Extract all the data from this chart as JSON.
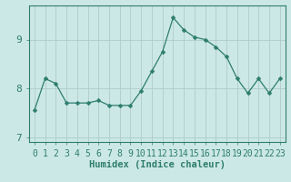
{
  "x": [
    0,
    1,
    2,
    3,
    4,
    5,
    6,
    7,
    8,
    9,
    10,
    11,
    12,
    13,
    14,
    15,
    16,
    17,
    18,
    19,
    20,
    21,
    22,
    23
  ],
  "y": [
    7.55,
    8.2,
    8.1,
    7.7,
    7.7,
    7.7,
    7.75,
    7.65,
    7.65,
    7.65,
    7.95,
    8.35,
    8.75,
    9.45,
    9.2,
    9.05,
    9.0,
    8.85,
    8.65,
    8.2,
    7.9,
    8.2,
    7.9,
    8.2
  ],
  "line_color": "#2e7d6e",
  "marker": "D",
  "marker_size": 2.5,
  "bg_color": "#cce8e6",
  "grid_color": "#b0ccca",
  "tick_color": "#2e7d6e",
  "label_color": "#2e7d6e",
  "xlabel": "Humidex (Indice chaleur)",
  "yticks": [
    7,
    8,
    9
  ],
  "ylim": [
    6.9,
    9.7
  ],
  "xlim": [
    -0.5,
    23.5
  ],
  "font_size": 7,
  "xlabel_fontsize": 7.5
}
